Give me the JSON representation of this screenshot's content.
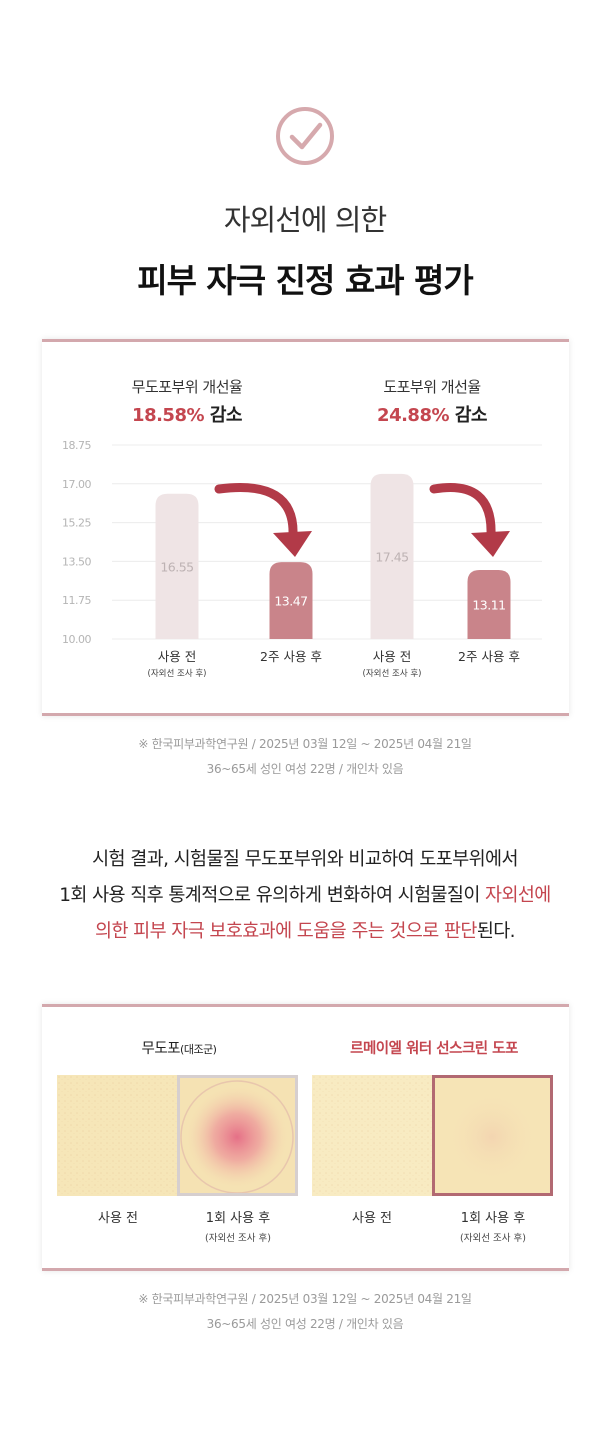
{
  "header": {
    "subtitle": "자외선에 의한",
    "title": "피부 자극 진정 효과 평가"
  },
  "chart_data": {
    "type": "bar",
    "y_ticks": [
      "18.75",
      "17.00",
      "15.25",
      "13.50",
      "11.75",
      "10.00"
    ],
    "ylim": [
      10.0,
      18.75
    ],
    "groups": [
      {
        "heading": "무도포부위 개선율",
        "rate": "18.58%",
        "rate_suffix": "감소",
        "bars": [
          {
            "label": "사용 전",
            "sublabel": "(자외선 조사 후)",
            "value": 16.55,
            "value_label": "16.55"
          },
          {
            "label": "2주 사용 후",
            "sublabel": "",
            "value": 13.47,
            "value_label": "13.47"
          }
        ]
      },
      {
        "heading": "도포부위 개선율",
        "rate": "24.88%",
        "rate_suffix": "감소",
        "bars": [
          {
            "label": "사용 전",
            "sublabel": "(자외선 조사 후)",
            "value": 17.45,
            "value_label": "17.45"
          },
          {
            "label": "2주 사용 후",
            "sublabel": "",
            "value": 13.11,
            "value_label": "13.11"
          }
        ]
      }
    ],
    "colors": {
      "before": "#efe4e5",
      "after": "#c9848a",
      "arrow": "#b23a48",
      "accent": "#c4464f"
    }
  },
  "notes": {
    "chart_note_1": "※ 한국피부과학연구원 / 2025년 03월 12일 ~ 2025년 04월 21일",
    "chart_note_2": "36~65세 성인 여성 22명 / 개인차 있음",
    "photo_note_1": "※ 한국피부과학연구원 / 2025년 03월 12일 ~ 2025년 04월 21일",
    "photo_note_2": "36~65세 성인 여성 22명 / 개인차 있음"
  },
  "body": {
    "line1": "시험 결과, 시험물질 무도포부위와 비교하여 도포부위에서",
    "line2_plain": "1회 사용 직후 통계적으로 유의하게 변화하여 시험물질이 ",
    "line2_hl": "자외선에",
    "line3_hl": "의한 피부 자극 보호효과에 도움을 주는 것으로 판단",
    "line3_plain": "된다."
  },
  "photos": {
    "left_title": "무도포",
    "left_title_small": "(대조군)",
    "right_title": "르메이엘 워터 선스크린 도포",
    "before_label": "사용 전",
    "after_label": "1회 사용 후",
    "after_sublabel": "(자외선 조사 후)"
  }
}
